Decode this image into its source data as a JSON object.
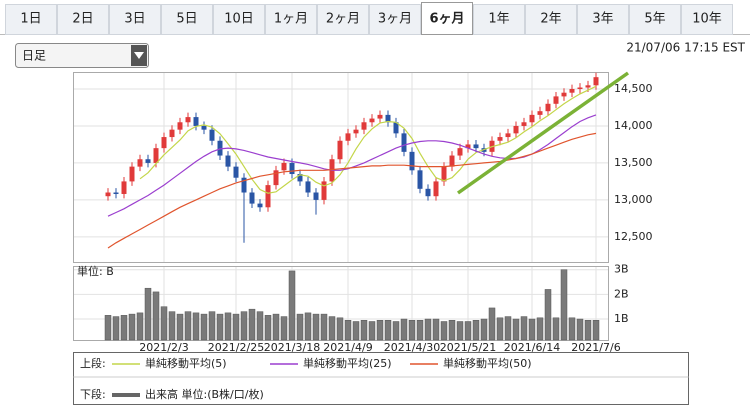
{
  "tabs": [
    {
      "label": "1日",
      "selected": false
    },
    {
      "label": "2日",
      "selected": false
    },
    {
      "label": "3日",
      "selected": false
    },
    {
      "label": "5日",
      "selected": false
    },
    {
      "label": "10日",
      "selected": false
    },
    {
      "label": "1ヶ月",
      "selected": false
    },
    {
      "label": "2ヶ月",
      "selected": false
    },
    {
      "label": "3ヶ月",
      "selected": false
    },
    {
      "label": "6ヶ月",
      "selected": true
    },
    {
      "label": "1年",
      "selected": false
    },
    {
      "label": "2年",
      "selected": false
    },
    {
      "label": "3年",
      "selected": false
    },
    {
      "label": "5年",
      "selected": false
    },
    {
      "label": "10年",
      "selected": false
    }
  ],
  "interval_select": "日足",
  "timestamp": "21/07/06 17:15 EST",
  "chart_data": [
    {
      "type": "candlestick",
      "categories": [
        null,
        null,
        null,
        null,
        null,
        null,
        null,
        "2021/2/3",
        null,
        null,
        null,
        null,
        null,
        null,
        null,
        null,
        "2021/2/25",
        null,
        null,
        null,
        null,
        null,
        null,
        "2021/3/18",
        null,
        null,
        null,
        null,
        null,
        null,
        "2021/4/9",
        null,
        null,
        null,
        null,
        null,
        null,
        null,
        "2021/4/30",
        null,
        null,
        null,
        null,
        null,
        null,
        "2021/5/21",
        null,
        null,
        null,
        null,
        null,
        null,
        null,
        "2021/6/14",
        null,
        null,
        null,
        null,
        null,
        null,
        null,
        "2021/7/6"
      ],
      "open": [
        13050,
        13100,
        13080,
        13250,
        13450,
        13550,
        13500,
        13700,
        13850,
        13950,
        14050,
        14120,
        14000,
        13950,
        13800,
        13600,
        13450,
        13300,
        13100,
        12950,
        12900,
        13200,
        13400,
        13500,
        13350,
        13250,
        13100,
        13000,
        13250,
        13550,
        13800,
        13900,
        13950,
        14050,
        14100,
        14150,
        14050,
        13900,
        13650,
        13400,
        13150,
        13050,
        13250,
        13450,
        13600,
        13700,
        13750,
        13700,
        13650,
        13800,
        13850,
        13900,
        14000,
        14050,
        14150,
        14200,
        14300,
        14400,
        14450,
        14500,
        14520,
        14550
      ],
      "high": [
        13160,
        13160,
        13310,
        13510,
        13610,
        13610,
        13760,
        13910,
        14010,
        14110,
        14180,
        14180,
        14060,
        14010,
        13860,
        13660,
        13510,
        13360,
        13160,
        13010,
        13260,
        13460,
        13560,
        13560,
        13410,
        13310,
        13160,
        13310,
        13610,
        13860,
        13960,
        14010,
        14110,
        14160,
        14210,
        14210,
        14110,
        13960,
        13710,
        13460,
        13210,
        13310,
        13510,
        13660,
        13760,
        13810,
        13810,
        13760,
        13860,
        13910,
        13960,
        14060,
        14110,
        14210,
        14260,
        14360,
        14460,
        14510,
        14560,
        14580,
        14610,
        14720
      ],
      "low": [
        12990,
        13020,
        13020,
        13190,
        13390,
        13440,
        13440,
        13640,
        13790,
        13890,
        13990,
        13940,
        13890,
        13740,
        13540,
        13390,
        13240,
        12420,
        12890,
        12840,
        12840,
        13140,
        13340,
        13290,
        13190,
        13040,
        12800,
        12940,
        13190,
        13490,
        13740,
        13840,
        13890,
        13990,
        14040,
        13990,
        13840,
        13590,
        13340,
        13090,
        12990,
        12990,
        13190,
        13390,
        13540,
        13640,
        13640,
        13590,
        13590,
        13740,
        13790,
        13840,
        13940,
        13990,
        14090,
        14140,
        14240,
        14340,
        14390,
        14440,
        14460,
        14490
      ],
      "close": [
        13100,
        13080,
        13250,
        13450,
        13550,
        13500,
        13700,
        13850,
        13950,
        14050,
        14120,
        14000,
        13950,
        13800,
        13600,
        13450,
        13300,
        13100,
        12950,
        12900,
        13200,
        13400,
        13500,
        13350,
        13250,
        13100,
        13000,
        13250,
        13550,
        13800,
        13900,
        13950,
        14050,
        14100,
        14150,
        14050,
        13900,
        13650,
        13400,
        13150,
        13050,
        13250,
        13450,
        13600,
        13700,
        13750,
        13700,
        13650,
        13800,
        13850,
        13900,
        14000,
        14050,
        14150,
        14200,
        14300,
        14400,
        14450,
        14500,
        14520,
        14550,
        14660
      ],
      "up_color": "#e03a3a",
      "down_color": "#2a55a5",
      "series": [
        {
          "name": "単純移動平均(5)",
          "color": "#c4d64a",
          "values": [
            null,
            null,
            null,
            null,
            13286,
            13366,
            13490,
            13610,
            13710,
            13810,
            13934,
            13994,
            14014,
            13984,
            13894,
            13760,
            13620,
            13450,
            13280,
            13140,
            13090,
            13110,
            13190,
            13270,
            13340,
            13320,
            13240,
            13190,
            13230,
            13340,
            13500,
            13690,
            13850,
            13960,
            14040,
            14060,
            14050,
            13970,
            13830,
            13630,
            13450,
            13300,
            13260,
            13300,
            13410,
            13550,
            13640,
            13680,
            13720,
            13750,
            13780,
            13840,
            13920,
            13990,
            14070,
            14140,
            14220,
            14300,
            14370,
            14434,
            14484,
            14536
          ]
        },
        {
          "name": "単純移動平均(25)",
          "color": "#9b3fcf",
          "values": [
            12780,
            12830,
            12880,
            12940,
            13000,
            13060,
            13130,
            13200,
            13280,
            13360,
            13440,
            13520,
            13590,
            13650,
            13690,
            13700,
            13690,
            13670,
            13640,
            13610,
            13580,
            13560,
            13540,
            13520,
            13500,
            13480,
            13450,
            13420,
            13400,
            13400,
            13420,
            13460,
            13500,
            13550,
            13600,
            13650,
            13700,
            13740,
            13770,
            13790,
            13800,
            13800,
            13790,
            13770,
            13740,
            13700,
            13660,
            13620,
            13590,
            13570,
            13560,
            13560,
            13580,
            13620,
            13680,
            13750,
            13830,
            13910,
            13990,
            14060,
            14110,
            14150
          ]
        },
        {
          "name": "単純移動平均(50)",
          "color": "#e0552e",
          "values": [
            12350,
            12420,
            12480,
            12540,
            12600,
            12660,
            12720,
            12780,
            12840,
            12900,
            12950,
            13000,
            13050,
            13100,
            13150,
            13190,
            13230,
            13260,
            13290,
            13320,
            13340,
            13360,
            13380,
            13390,
            13400,
            13400,
            13400,
            13400,
            13410,
            13420,
            13430,
            13440,
            13450,
            13460,
            13460,
            13470,
            13470,
            13470,
            13460,
            13450,
            13450,
            13450,
            13450,
            13460,
            13470,
            13480,
            13490,
            13500,
            13510,
            13520,
            13540,
            13560,
            13590,
            13620,
            13660,
            13700,
            13740,
            13780,
            13820,
            13850,
            13880,
            13900
          ]
        }
      ],
      "ylim": [
        12160,
        14730
      ],
      "yticks": [
        {
          "value": 12500,
          "label": "12,500"
        },
        {
          "value": 13000,
          "label": "13,000"
        },
        {
          "value": 13500,
          "label": "13,500"
        },
        {
          "value": 14000,
          "label": "14,000"
        },
        {
          "value": 14500,
          "label": "14,500"
        }
      ],
      "grid": true
    },
    {
      "type": "bar",
      "y_label": "単位: B",
      "color": "#7a7a7a",
      "values": [
        1.15,
        1.1,
        1.15,
        1.2,
        1.25,
        2.25,
        2.1,
        1.5,
        1.3,
        1.2,
        1.3,
        1.25,
        1.2,
        1.3,
        1.2,
        1.25,
        1.2,
        1.3,
        1.4,
        1.3,
        1.15,
        1.2,
        1.1,
        2.95,
        1.2,
        1.25,
        1.2,
        1.2,
        1.1,
        1.05,
        0.95,
        0.9,
        0.95,
        0.9,
        0.95,
        0.95,
        0.9,
        1.0,
        0.95,
        0.95,
        1.0,
        1.0,
        0.9,
        0.95,
        0.9,
        0.9,
        0.95,
        1.0,
        1.45,
        1.05,
        1.1,
        1.0,
        1.1,
        1.0,
        1.05,
        2.2,
        1.05,
        3.0,
        1.05,
        1.0,
        0.95,
        0.95
      ],
      "ylim": [
        0.15,
        3.15
      ],
      "yticks": [
        {
          "value": 1,
          "label": "1B"
        },
        {
          "value": 2,
          "label": "2B"
        },
        {
          "value": 3,
          "label": "3B"
        }
      ],
      "grid": true
    }
  ],
  "legend": {
    "upper_label": "上段:",
    "lower_label": "下段:",
    "lower_item": "出来高 単位:(B株/口/枚)"
  }
}
